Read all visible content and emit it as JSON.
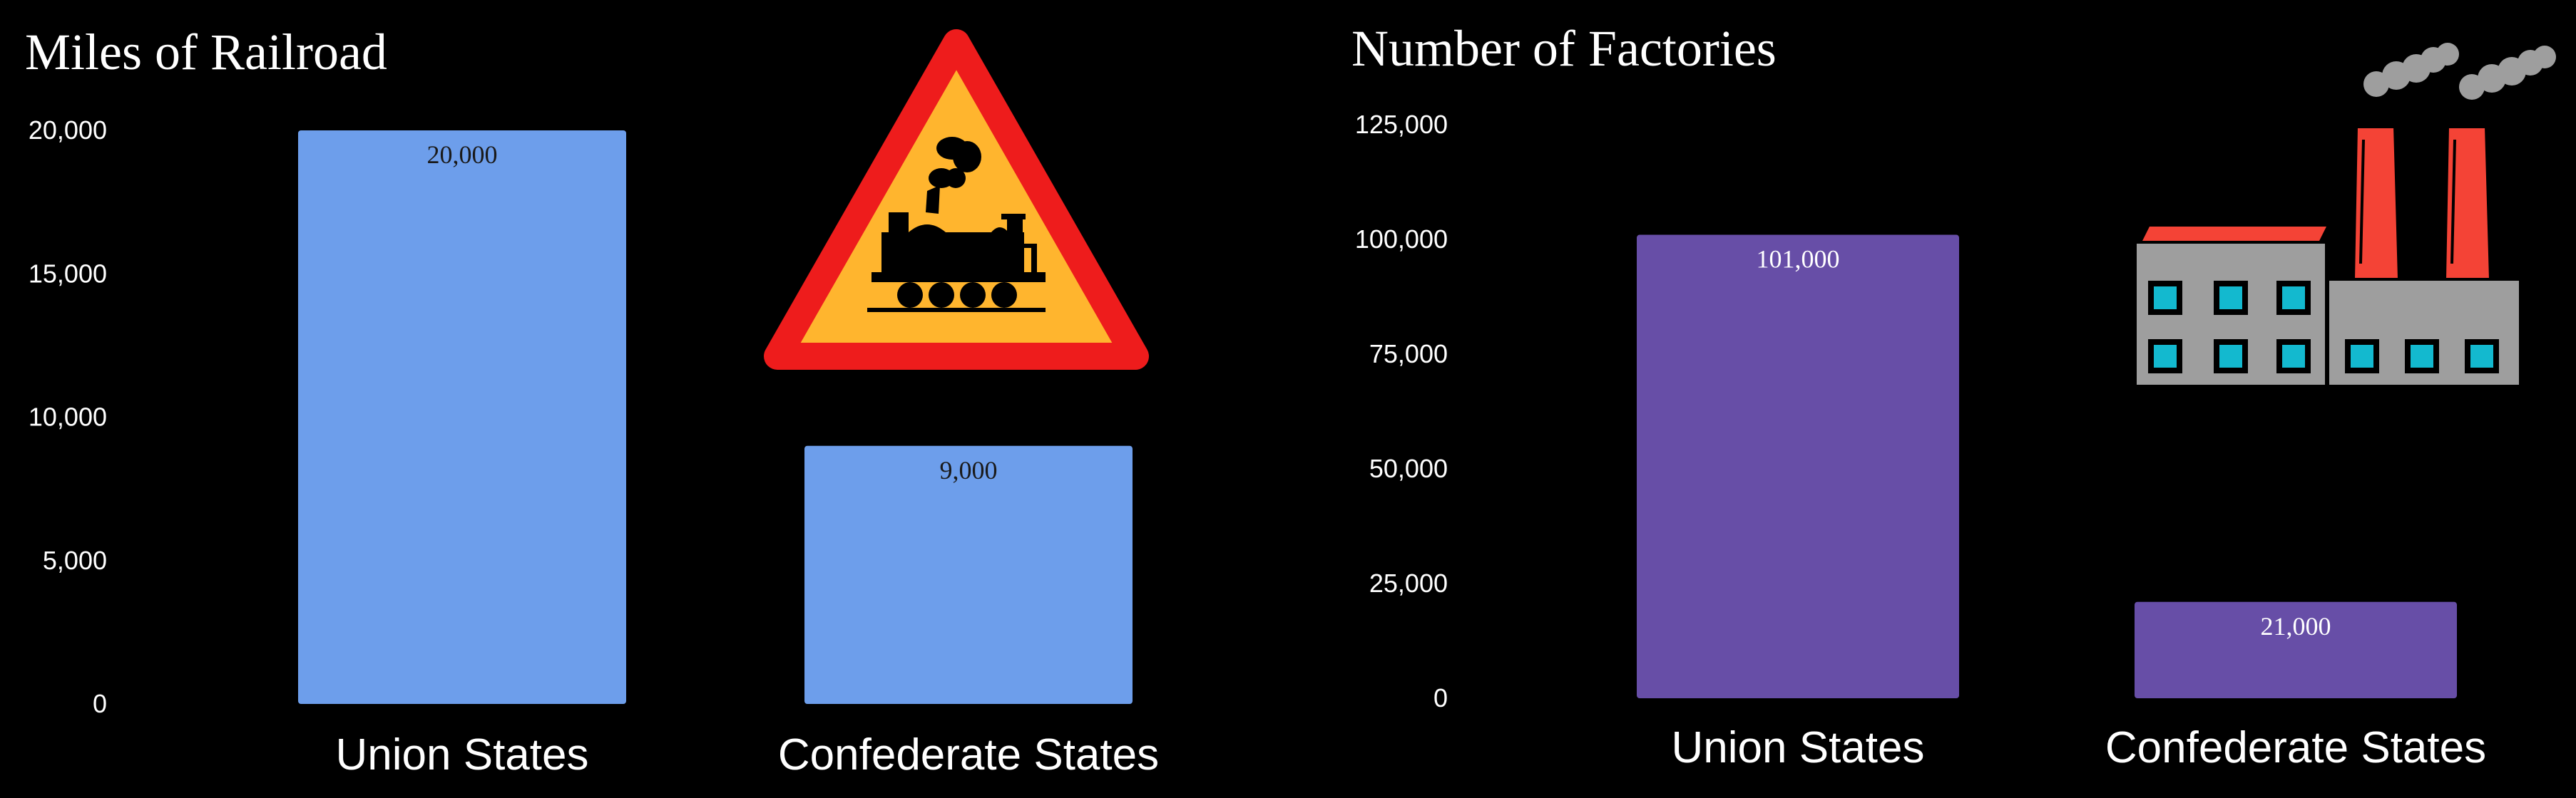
{
  "chart_data": [
    {
      "type": "bar",
      "title": "Miles of Railroad",
      "categories": [
        "Union States",
        "Confederate States"
      ],
      "values": [
        20000,
        9000
      ],
      "value_labels": [
        "20,000",
        "9,000"
      ],
      "ylim": [
        0,
        20000
      ],
      "yticks": [
        0,
        5000,
        10000,
        15000,
        20000
      ],
      "ytick_labels": [
        "0",
        "5,000",
        "10,000",
        "15,000",
        "20,000"
      ],
      "xlabel": "",
      "ylabel": "",
      "grid": false,
      "bar_color": "#6d9eeb",
      "label_color": "#1a1a1a",
      "icon": "railroad-crossing-sign-icon"
    },
    {
      "type": "bar",
      "title": "Number of Factories",
      "categories": [
        "Union States",
        "Confederate States"
      ],
      "values": [
        101000,
        21000
      ],
      "value_labels": [
        "101,000",
        "21,000"
      ],
      "ylim": [
        0,
        125000
      ],
      "yticks": [
        0,
        25000,
        50000,
        75000,
        100000,
        125000
      ],
      "ytick_labels": [
        "0",
        "25,000",
        "50,000",
        "75,000",
        "100,000",
        "125,000"
      ],
      "xlabel": "",
      "ylabel": "",
      "grid": false,
      "bar_color": "#674ea7",
      "label_color": "#ffffff",
      "icon": "factory-icon"
    }
  ],
  "colors": {
    "background": "#000000",
    "text": "#ffffff"
  }
}
